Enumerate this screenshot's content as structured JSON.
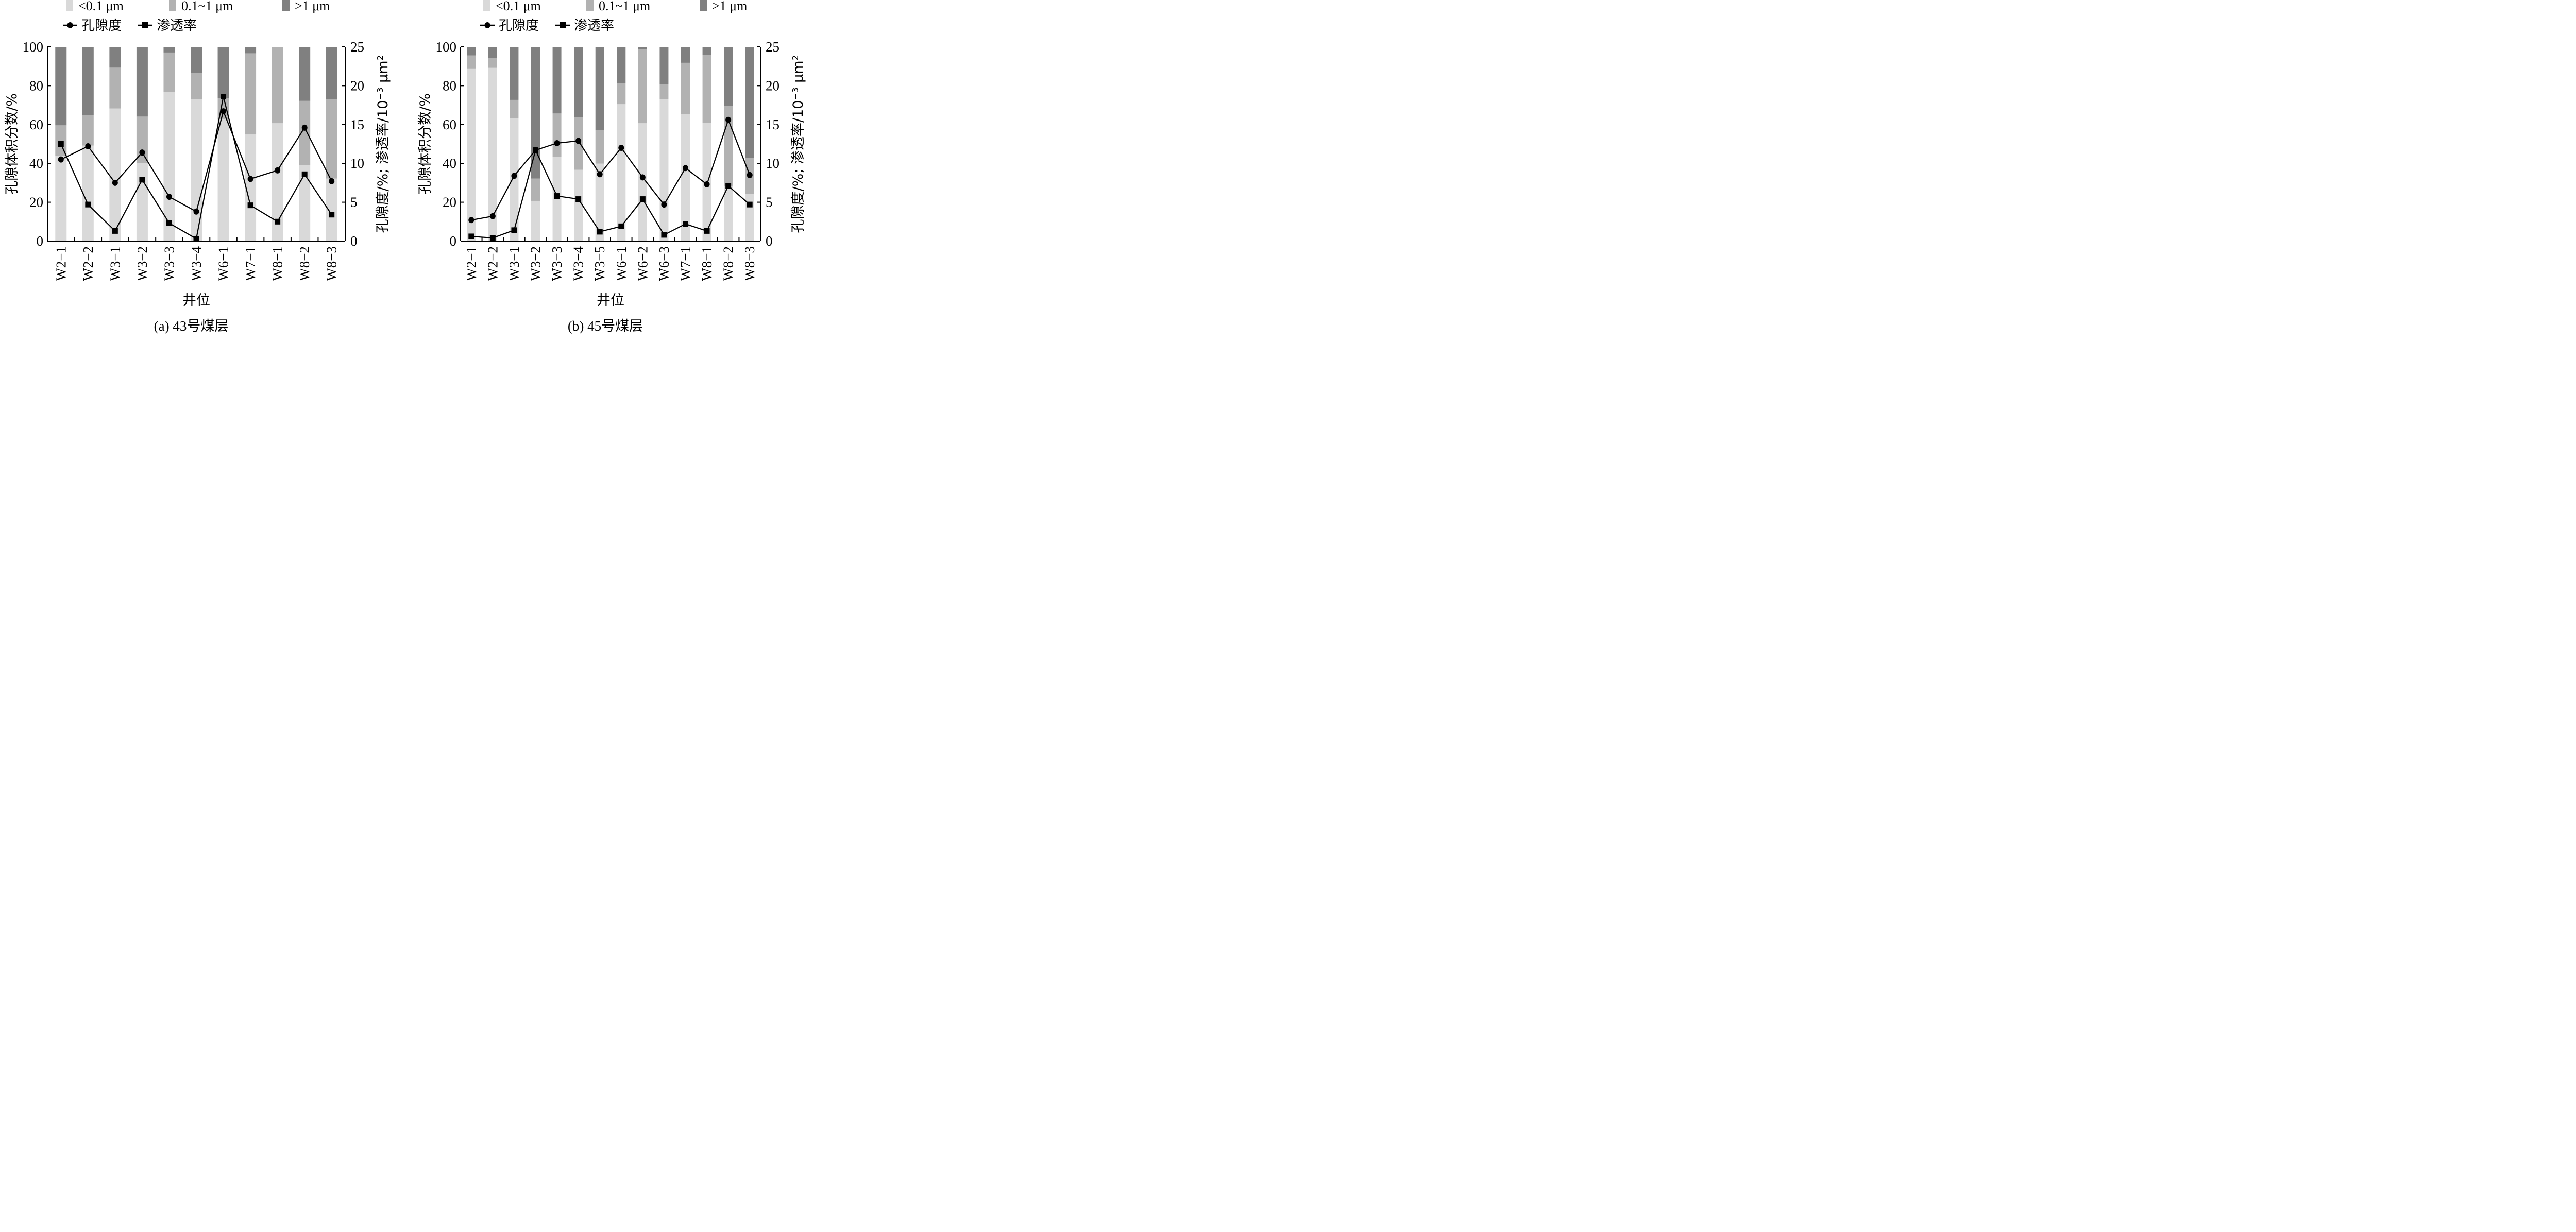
{
  "legend": {
    "bars": [
      {
        "label": "<0.1 μm",
        "color": "#d9d9d9"
      },
      {
        "label": "0.1~1 μm",
        "color": "#b2b2b2"
      },
      {
        "label": ">1 μm",
        "color": "#808080"
      }
    ],
    "lines": [
      {
        "label": "孔隙度",
        "marker": "circle"
      },
      {
        "label": "渗透率",
        "marker": "square"
      }
    ]
  },
  "chart_data": [
    {
      "type": "bar",
      "subtype": "stacked-bar-with-lines",
      "title": "(a)  43号煤层",
      "xlabel": "井位",
      "ylabel": "孔隙体积分数/%",
      "y2label": "孔隙度/%; 渗透率/10⁻³ μm²",
      "ylim": [
        0,
        100
      ],
      "y2lim": [
        0,
        25
      ],
      "yticks": [
        "0",
        "20",
        "40",
        "60",
        "80",
        "100"
      ],
      "y2ticks": [
        "0",
        "5",
        "10",
        "15",
        "20",
        "25"
      ],
      "categories": [
        "W2−1",
        "W2−2",
        "W3−1",
        "W3−2",
        "W3−3",
        "W3−4",
        "W6−1",
        "W7−1",
        "W8−1",
        "W8−2",
        "W8−3"
      ],
      "series": [
        {
          "name": "<0.1 μm",
          "kind": "bar",
          "axis": "left",
          "values": [
            44.0,
            49.2,
            68.3,
            40.2,
            76.7,
            73.2,
            62.7,
            54.9,
            60.7,
            39.1,
            32.2
          ]
        },
        {
          "name": "0.1~1 μm",
          "kind": "bar",
          "axis": "left",
          "values": [
            15.6,
            15.7,
            21.0,
            23.9,
            20.4,
            13.3,
            10.8,
            41.8,
            39.3,
            33.1,
            40.9
          ]
        },
        {
          "name": ">1 μm",
          "kind": "bar",
          "axis": "left",
          "values": [
            40.4,
            35.1,
            10.7,
            35.9,
            2.9,
            13.5,
            26.5,
            3.3,
            0.0,
            27.8,
            26.9
          ]
        },
        {
          "name": "孔隙度",
          "kind": "line",
          "marker": "circle",
          "axis": "right",
          "values": [
            10.5,
            12.2,
            7.5,
            11.4,
            5.7,
            3.8,
            16.7,
            8.0,
            9.1,
            14.6,
            7.7
          ]
        },
        {
          "name": "渗透率",
          "kind": "line",
          "marker": "square",
          "axis": "right",
          "values": [
            12.5,
            4.7,
            1.3,
            7.9,
            2.3,
            0.3,
            18.6,
            4.6,
            2.5,
            8.6,
            3.4
          ]
        }
      ],
      "grid": false,
      "legend_position": "top"
    },
    {
      "type": "bar",
      "subtype": "stacked-bar-with-lines",
      "title": "(b)  45号煤层",
      "xlabel": "井位",
      "ylabel": "孔隙体积分数/%",
      "y2label": "孔隙度/%; 渗透率/10⁻³ μm²",
      "ylim": [
        0,
        100
      ],
      "y2lim": [
        0,
        25
      ],
      "yticks": [
        "0",
        "20",
        "40",
        "60",
        "80",
        "100"
      ],
      "y2ticks": [
        "0",
        "5",
        "10",
        "15",
        "20",
        "25"
      ],
      "categories": [
        "W2−1",
        "W2−2",
        "W3−1",
        "W3−2",
        "W3−3",
        "W3−4",
        "W3−5",
        "W6−1",
        "W6−2",
        "W6−3",
        "W7−1",
        "W8−1",
        "W8−2",
        "W8−3"
      ],
      "series": [
        {
          "name": "<0.1 μm",
          "kind": "bar",
          "axis": "left",
          "values": [
            88.9,
            89.2,
            63.2,
            20.7,
            43.3,
            36.7,
            39.9,
            70.5,
            60.7,
            73.1,
            65.3,
            60.8,
            28.4,
            24.4
          ]
        },
        {
          "name": "0.1~1 μm",
          "kind": "bar",
          "axis": "left",
          "values": [
            6.7,
            5.0,
            9.5,
            11.5,
            22.4,
            27.2,
            17.1,
            10.8,
            38.2,
            7.5,
            26.5,
            35.1,
            41.3,
            18.4
          ]
        },
        {
          "name": ">1 μm",
          "kind": "bar",
          "axis": "left",
          "values": [
            4.4,
            5.8,
            27.3,
            67.8,
            34.3,
            36.1,
            43.0,
            18.7,
            1.1,
            19.4,
            8.2,
            4.1,
            30.3,
            57.2
          ]
        },
        {
          "name": "孔隙度",
          "kind": "line",
          "marker": "circle",
          "axis": "right",
          "values": [
            2.7,
            3.2,
            8.4,
            11.7,
            12.6,
            12.9,
            8.6,
            12.0,
            8.2,
            4.7,
            9.4,
            7.3,
            15.6,
            8.5
          ]
        },
        {
          "name": "渗透率",
          "kind": "line",
          "marker": "square",
          "axis": "right",
          "values": [
            0.6,
            0.4,
            1.4,
            11.7,
            5.8,
            5.4,
            1.2,
            1.9,
            5.4,
            0.8,
            2.2,
            1.3,
            7.1,
            4.7
          ]
        }
      ],
      "grid": false,
      "legend_position": "top"
    }
  ]
}
